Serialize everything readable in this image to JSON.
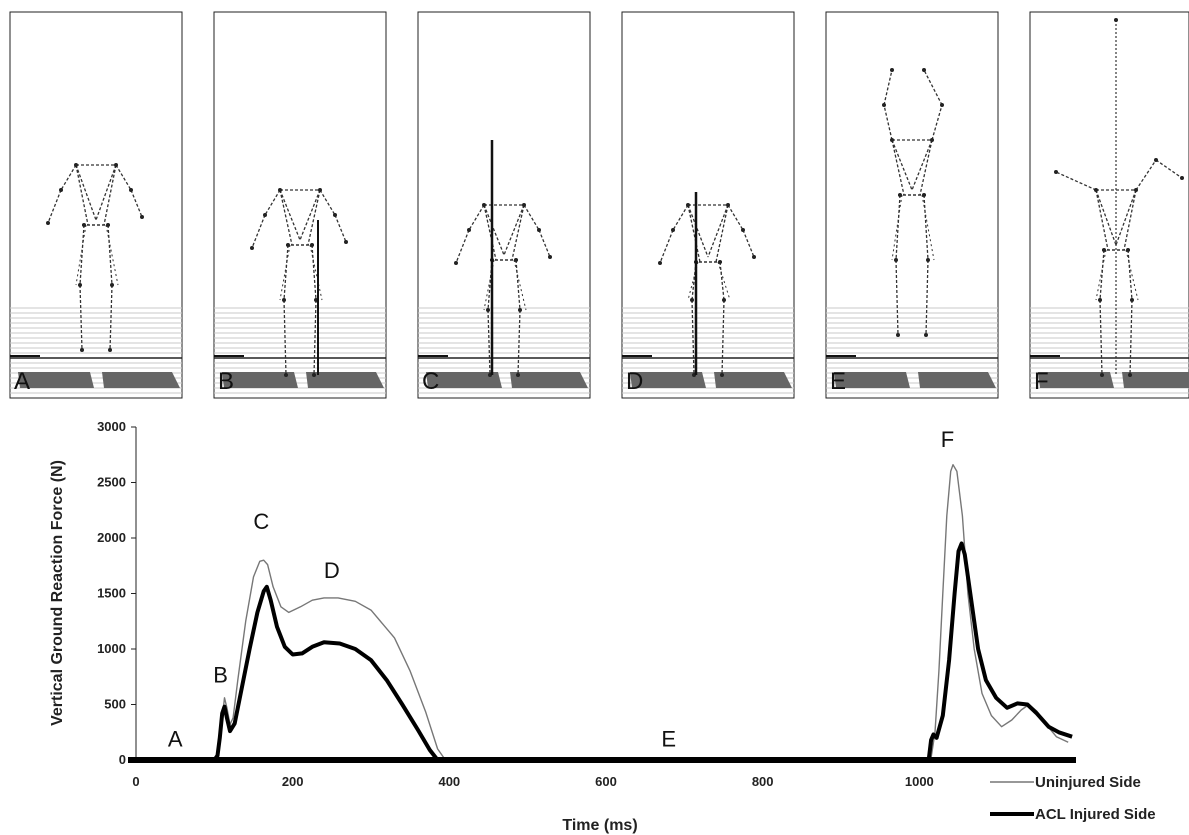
{
  "panels": [
    {
      "label": "A"
    },
    {
      "label": "B"
    },
    {
      "label": "C"
    },
    {
      "label": "D"
    },
    {
      "label": "E"
    },
    {
      "label": "F"
    }
  ],
  "chart_data": {
    "type": "line",
    "xlabel": "Time (ms)",
    "ylabel": "Vertical Ground Reaction Force (N)",
    "xlim": [
      0,
      1200
    ],
    "ylim": [
      0,
      3000
    ],
    "xticks": [
      0,
      200,
      400,
      600,
      800,
      1000
    ],
    "yticks": [
      0,
      500,
      1000,
      1500,
      2000,
      2500,
      3000
    ],
    "grid": false,
    "legend_position": "bottom-right",
    "series": [
      {
        "name": "Uninjured Side",
        "style": "thin",
        "color": "#777777",
        "points": [
          [
            0,
            0
          ],
          [
            98,
            0
          ],
          [
            102,
            20
          ],
          [
            106,
            150
          ],
          [
            110,
            380
          ],
          [
            113,
            560
          ],
          [
            116,
            470
          ],
          [
            120,
            320
          ],
          [
            124,
            380
          ],
          [
            130,
            720
          ],
          [
            140,
            1250
          ],
          [
            150,
            1650
          ],
          [
            158,
            1790
          ],
          [
            163,
            1800
          ],
          [
            168,
            1760
          ],
          [
            175,
            1560
          ],
          [
            185,
            1380
          ],
          [
            195,
            1330
          ],
          [
            210,
            1380
          ],
          [
            225,
            1440
          ],
          [
            240,
            1460
          ],
          [
            258,
            1460
          ],
          [
            280,
            1430
          ],
          [
            300,
            1350
          ],
          [
            330,
            1100
          ],
          [
            350,
            800
          ],
          [
            370,
            430
          ],
          [
            385,
            100
          ],
          [
            395,
            0
          ],
          [
            1010,
            0
          ],
          [
            1015,
            20
          ],
          [
            1020,
            250
          ],
          [
            1025,
            800
          ],
          [
            1030,
            1500
          ],
          [
            1035,
            2200
          ],
          [
            1040,
            2600
          ],
          [
            1043,
            2660
          ],
          [
            1048,
            2600
          ],
          [
            1055,
            2200
          ],
          [
            1062,
            1500
          ],
          [
            1070,
            1000
          ],
          [
            1080,
            600
          ],
          [
            1092,
            400
          ],
          [
            1105,
            300
          ],
          [
            1118,
            360
          ],
          [
            1130,
            450
          ],
          [
            1140,
            500
          ],
          [
            1150,
            440
          ],
          [
            1162,
            320
          ],
          [
            1175,
            210
          ],
          [
            1190,
            160
          ]
        ]
      },
      {
        "name": "ACL Injured Side",
        "style": "thick",
        "color": "#000000",
        "points": [
          [
            0,
            0
          ],
          [
            100,
            0
          ],
          [
            104,
            40
          ],
          [
            107,
            200
          ],
          [
            110,
            420
          ],
          [
            113,
            480
          ],
          [
            116,
            380
          ],
          [
            120,
            260
          ],
          [
            126,
            330
          ],
          [
            135,
            650
          ],
          [
            145,
            1000
          ],
          [
            155,
            1330
          ],
          [
            163,
            1520
          ],
          [
            167,
            1560
          ],
          [
            172,
            1440
          ],
          [
            180,
            1200
          ],
          [
            190,
            1020
          ],
          [
            200,
            950
          ],
          [
            212,
            960
          ],
          [
            225,
            1020
          ],
          [
            240,
            1060
          ],
          [
            260,
            1050
          ],
          [
            280,
            1000
          ],
          [
            300,
            900
          ],
          [
            320,
            720
          ],
          [
            340,
            500
          ],
          [
            360,
            270
          ],
          [
            375,
            90
          ],
          [
            385,
            0
          ],
          [
            1012,
            0
          ],
          [
            1015,
            180
          ],
          [
            1018,
            230
          ],
          [
            1022,
            200
          ],
          [
            1030,
            400
          ],
          [
            1038,
            900
          ],
          [
            1045,
            1500
          ],
          [
            1050,
            1880
          ],
          [
            1054,
            1950
          ],
          [
            1058,
            1850
          ],
          [
            1065,
            1500
          ],
          [
            1075,
            1000
          ],
          [
            1085,
            720
          ],
          [
            1098,
            560
          ],
          [
            1112,
            470
          ],
          [
            1125,
            510
          ],
          [
            1138,
            500
          ],
          [
            1150,
            420
          ],
          [
            1165,
            300
          ],
          [
            1178,
            250
          ],
          [
            1195,
            210
          ]
        ]
      }
    ],
    "annotations": [
      {
        "text": "A",
        "x": 50,
        "y": 120
      },
      {
        "text": "B",
        "x": 108,
        "y": 700
      },
      {
        "text": "C",
        "x": 160,
        "y": 2080
      },
      {
        "text": "D",
        "x": 250,
        "y": 1640
      },
      {
        "text": "E",
        "x": 680,
        "y": 120
      },
      {
        "text": "F",
        "x": 1036,
        "y": 2820
      }
    ]
  }
}
